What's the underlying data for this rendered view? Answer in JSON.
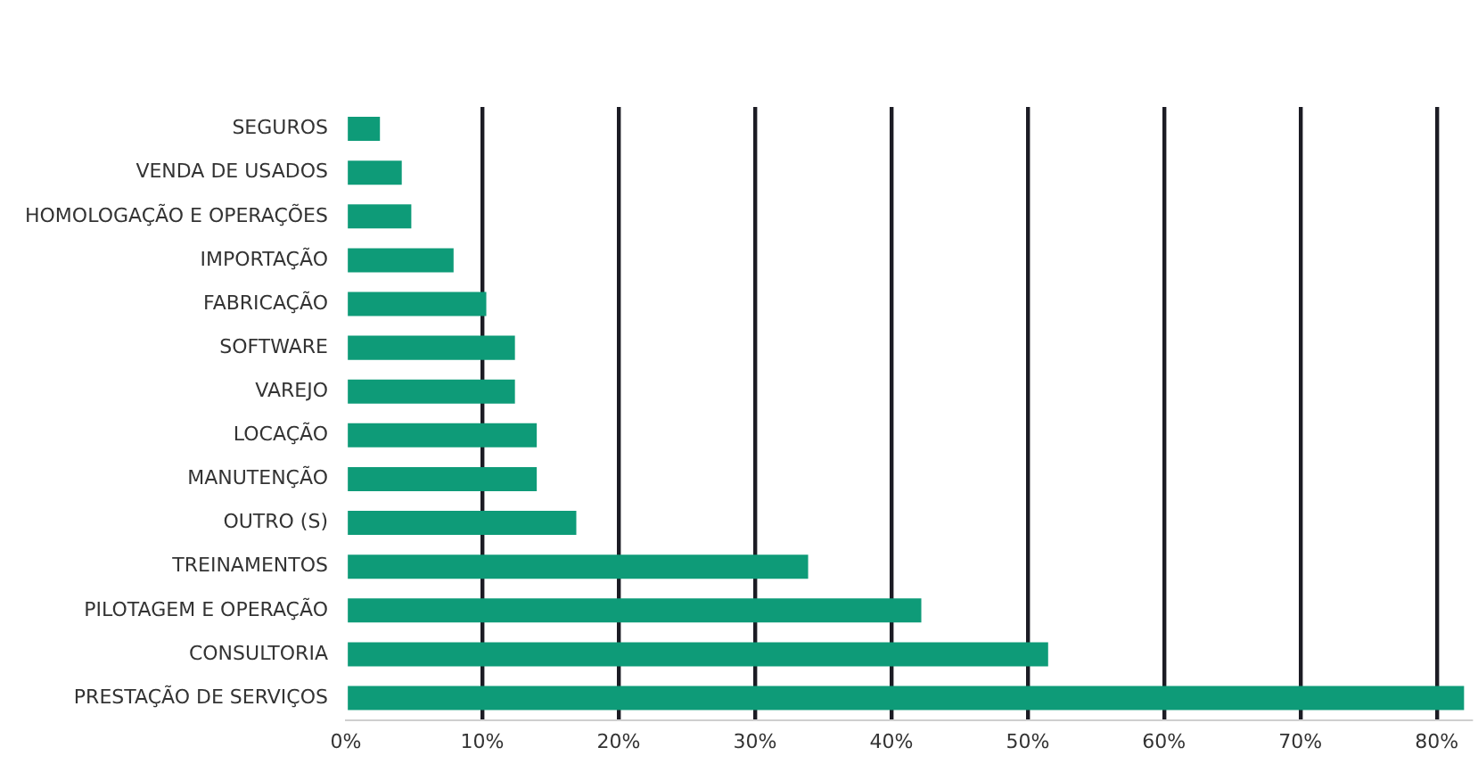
{
  "chart_data": {
    "type": "bar",
    "orientation": "horizontal",
    "categories": [
      "SEGUROS",
      "VENDA DE USADOS",
      "HOMOLOGAÇÃO E OPERAÇÕES",
      "IMPORTAÇÃO",
      "FABRICAÇÃO",
      "SOFTWARE",
      "VAREJO",
      "LOCAÇÃO",
      "MANUTENÇÃO",
      "OUTRO (S)",
      "TREINAMENTOS",
      "PILOTAGEM E OPERAÇÃO",
      "CONSULTORIA",
      "PRESTAÇÃO DE SERVIÇOS"
    ],
    "values": [
      2.5,
      4.1,
      4.8,
      7.9,
      10.3,
      12.4,
      12.4,
      14,
      14,
      16.9,
      33.9,
      42.2,
      51.5,
      82
    ],
    "color": "#0e9b78",
    "xlim": [
      0,
      82.5
    ],
    "xticks": [
      {
        "value": 0,
        "label": "0%"
      },
      {
        "value": 10,
        "label": "10%"
      },
      {
        "value": 20,
        "label": "20%"
      },
      {
        "value": 30,
        "label": "30%"
      },
      {
        "value": 40,
        "label": "40%"
      },
      {
        "value": 50,
        "label": "50%"
      },
      {
        "value": 60,
        "label": "60%"
      },
      {
        "value": 70,
        "label": "70%"
      },
      {
        "value": 80,
        "label": "80%"
      }
    ],
    "grid": "x",
    "legend": false
  }
}
